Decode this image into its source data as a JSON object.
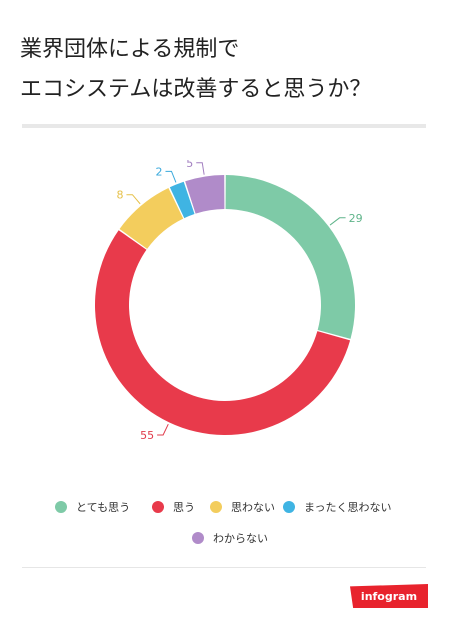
{
  "title_lines": [
    "業界団体による規制で",
    "エコシステムは改善すると思うか？"
  ],
  "brand": "infogram",
  "chart_data": {
    "type": "pie",
    "donut": true,
    "categories": [
      "とても思う",
      "思う",
      "思わない",
      "まったく思わない",
      "わからない"
    ],
    "values": [
      29,
      55,
      8,
      2,
      5
    ],
    "colors": [
      "#7ecaa7",
      "#e83a4b",
      "#f3cd5d",
      "#3fb4e3",
      "#b08bc9"
    ],
    "label_colors": [
      "#5fb48a",
      "#e03b4b",
      "#e6c14a",
      "#3aa9dc",
      "#a27fc0"
    ],
    "legend_position": "bottom",
    "legend": [
      {
        "label": "とても思う",
        "color": "#7ecaa7"
      },
      {
        "label": "思う",
        "color": "#e83a4b"
      },
      {
        "label": "思わない",
        "color": "#f3cd5d"
      },
      {
        "label": "まったく思わない",
        "color": "#3fb4e3"
      },
      {
        "label": "わからない",
        "color": "#b08bc9"
      }
    ]
  }
}
